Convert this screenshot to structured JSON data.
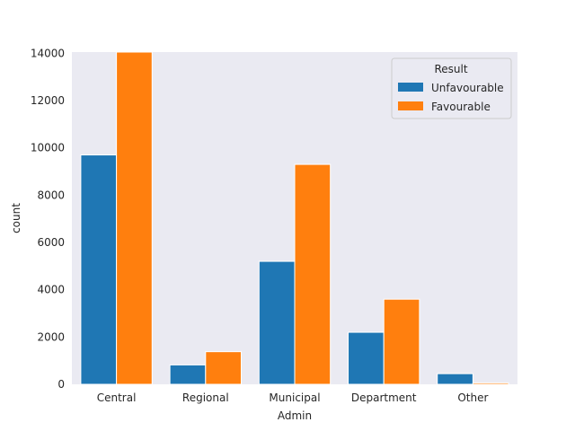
{
  "chart_data": {
    "type": "bar",
    "xlabel": "Admin",
    "ylabel": "count",
    "categories": [
      "Central",
      "Regional",
      "Municipal",
      "Department",
      "Other"
    ],
    "series": [
      {
        "name": "Unfavourable",
        "color": "#1f77b4",
        "values": [
          9700,
          820,
          5200,
          2200,
          450
        ]
      },
      {
        "name": "Favourable",
        "color": "#ff7f0e",
        "values": [
          14050,
          1380,
          9300,
          3600,
          60
        ]
      }
    ],
    "ylim": [
      0,
      14050
    ],
    "yticks": [
      0,
      2000,
      4000,
      6000,
      8000,
      10000,
      12000,
      14000
    ],
    "ytick_labels": [
      "0",
      "2000",
      "4000",
      "6000",
      "8000",
      "10000",
      "12000",
      "14000"
    ],
    "legend": {
      "title": "Result",
      "placement": "top-right"
    },
    "grid": false,
    "background_color": "#eaeaf2"
  }
}
